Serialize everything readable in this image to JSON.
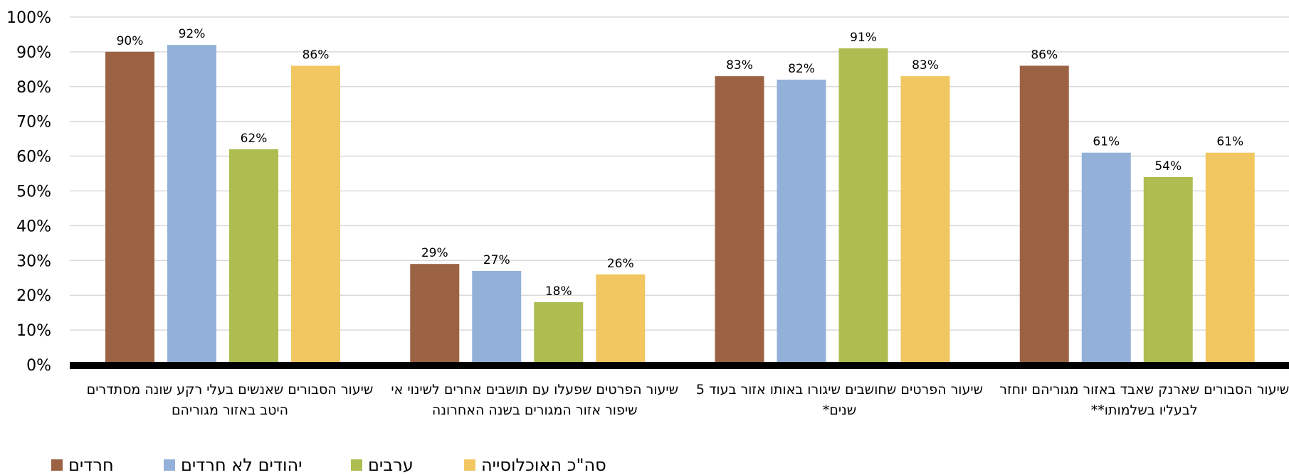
{
  "chart_data": {
    "type": "bar",
    "title": "",
    "xlabel": "",
    "ylabel": "",
    "ylim": [
      0,
      100
    ],
    "yticks": [
      "0%",
      "10%",
      "20%",
      "30%",
      "40%",
      "50%",
      "60%",
      "70%",
      "80%",
      "90%",
      "100%"
    ],
    "grid": true,
    "legend_position": "bottom",
    "categories": [
      [
        "שיעור הסבורים שאנשים בעלי רקע שונה מסתדרים",
        "היטב באזור מגוריהם"
      ],
      [
        "שיעור הפרטים שפעלו עם תושבים אחרים לשינוי אי",
        "שיפור אזור המגורים בשנה האחרונה"
      ],
      [
        "שיעור הפרטים שחושבים שיגורו באותו אזור בעוד 5",
        "שנים*"
      ],
      [
        "שיעור הסבורים שארנק שאבד באזור מגוריהם יוחזר",
        "לבעליו בשלמותו**"
      ]
    ],
    "series": [
      {
        "name": "חרדים",
        "color": "#9c6244",
        "values": [
          90,
          29,
          83,
          86
        ],
        "labels": [
          "90%",
          "29%",
          "83%",
          "86%"
        ]
      },
      {
        "name": "יהודים לא חרדים",
        "color": "#93b1d8",
        "values": [
          92,
          27,
          82,
          61
        ],
        "labels": [
          "92%",
          "27%",
          "82%",
          "61%"
        ]
      },
      {
        "name": "ערבים",
        "color": "#adbd50",
        "values": [
          62,
          18,
          91,
          54
        ],
        "labels": [
          "62%",
          "18%",
          "91%",
          "54%"
        ]
      },
      {
        "name": "סה\"כ האוכלוסייה",
        "color": "#f2c762",
        "values": [
          86,
          26,
          83,
          61
        ],
        "labels": [
          "86%",
          "26%",
          "83%",
          "61%"
        ]
      }
    ]
  }
}
